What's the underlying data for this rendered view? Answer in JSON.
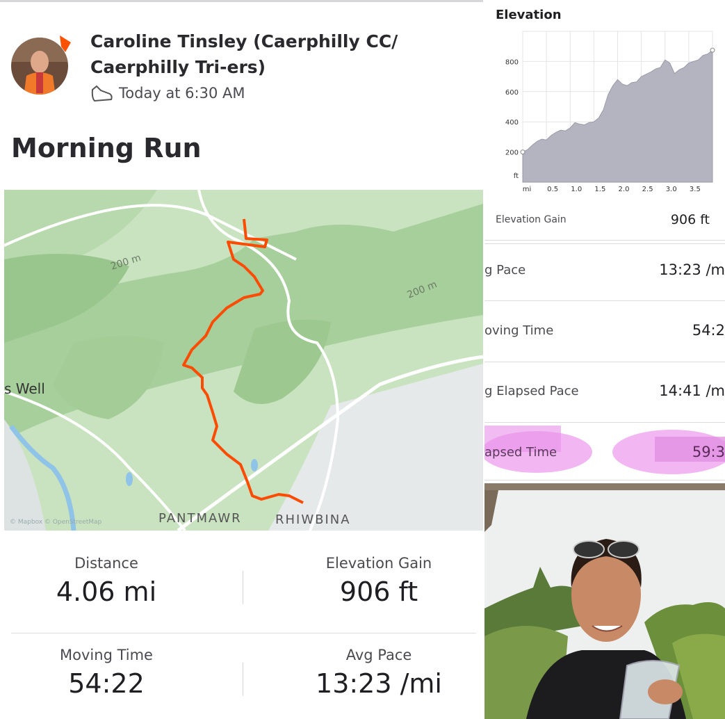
{
  "activity": {
    "athlete": "Caroline Tinsley (Caerphilly CC/ Caerphilly Tri-ers)",
    "time": "Today at 6:30 AM",
    "title": "Morning Run",
    "map_labels": [
      "200 m",
      "200 m",
      "s Well",
      "PANTMAWR",
      "RHIWBINA",
      "© Mapbox © OpenStreetMap"
    ],
    "stats": [
      {
        "label": "Distance",
        "value": "4.06 mi"
      },
      {
        "label": "Elevation Gain",
        "value": "906 ft"
      },
      {
        "label": "Moving Time",
        "value": "54:22"
      },
      {
        "label": "Avg Pace",
        "value": "13:23 /mi"
      }
    ]
  },
  "elevation": {
    "title": "Elevation",
    "chart_data": {
      "type": "area",
      "color": "#b4b4c0",
      "x": [
        0,
        0.1,
        0.2,
        0.3,
        0.4,
        0.5,
        0.6,
        0.7,
        0.8,
        0.9,
        1.0,
        1.1,
        1.2,
        1.3,
        1.4,
        1.5,
        1.6,
        1.7,
        1.8,
        1.9,
        2.0,
        2.1,
        2.2,
        2.3,
        2.4,
        2.5,
        2.6,
        2.7,
        2.8,
        2.9,
        3.0,
        3.1,
        3.2,
        3.3,
        3.4,
        3.5,
        3.6,
        3.7,
        3.8,
        3.9,
        4.0
      ],
      "values": [
        200,
        215,
        245,
        270,
        285,
        280,
        310,
        330,
        345,
        340,
        360,
        395,
        385,
        380,
        395,
        400,
        425,
        480,
        580,
        640,
        680,
        650,
        640,
        660,
        665,
        700,
        715,
        730,
        750,
        760,
        810,
        790,
        720,
        745,
        760,
        790,
        800,
        810,
        840,
        850,
        875
      ],
      "xlim": [
        0,
        4.0
      ],
      "ylim": [
        0,
        1000
      ],
      "xticks": [
        0.5,
        {
          "value": 1,
          "label": "1.0"
        },
        1.5,
        {
          "value": 2,
          "label": "2.0"
        },
        2.5,
        {
          "value": 3,
          "label": "3.0"
        },
        3.5
      ],
      "yticks": [
        200,
        400,
        600,
        800
      ],
      "x_unit": "mi",
      "y_unit": "ft",
      "grid": true
    },
    "rows": [
      {
        "label": "Elevation Gain",
        "value": "906 ft"
      },
      {
        "label": "g Pace",
        "value": "13:23 /m"
      },
      {
        "label": "oving Time",
        "value": "54:2"
      },
      {
        "label": "g Elapsed Pace",
        "value": "14:41 /m"
      },
      {
        "label": "apsed Time",
        "value": "59:3"
      }
    ]
  }
}
